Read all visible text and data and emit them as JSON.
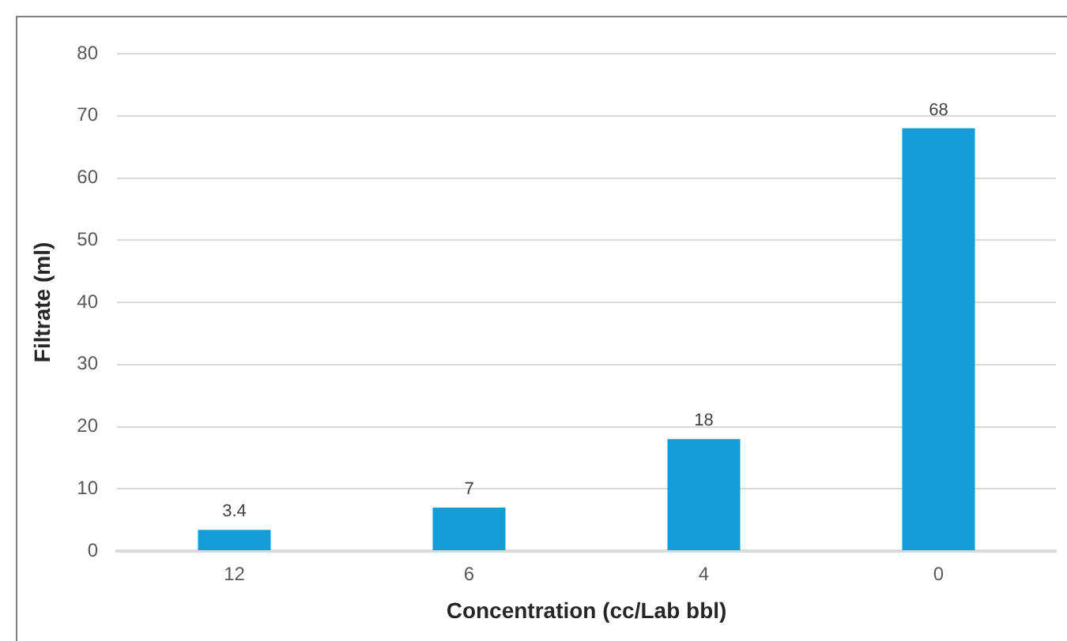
{
  "chart_data": {
    "type": "bar",
    "categories": [
      "12",
      "6",
      "4",
      "0"
    ],
    "values": [
      3.4,
      7,
      18,
      68
    ],
    "color": "#139dd8",
    "xlabel": "Concentration (cc/Lab bbl)",
    "ylabel": "Filtrate (ml)",
    "ylim": [
      0,
      80
    ],
    "yticks": [
      0,
      10,
      20,
      30,
      40,
      50,
      60,
      70,
      80
    ],
    "grid": "y",
    "legend": false,
    "data_labels": true
  }
}
